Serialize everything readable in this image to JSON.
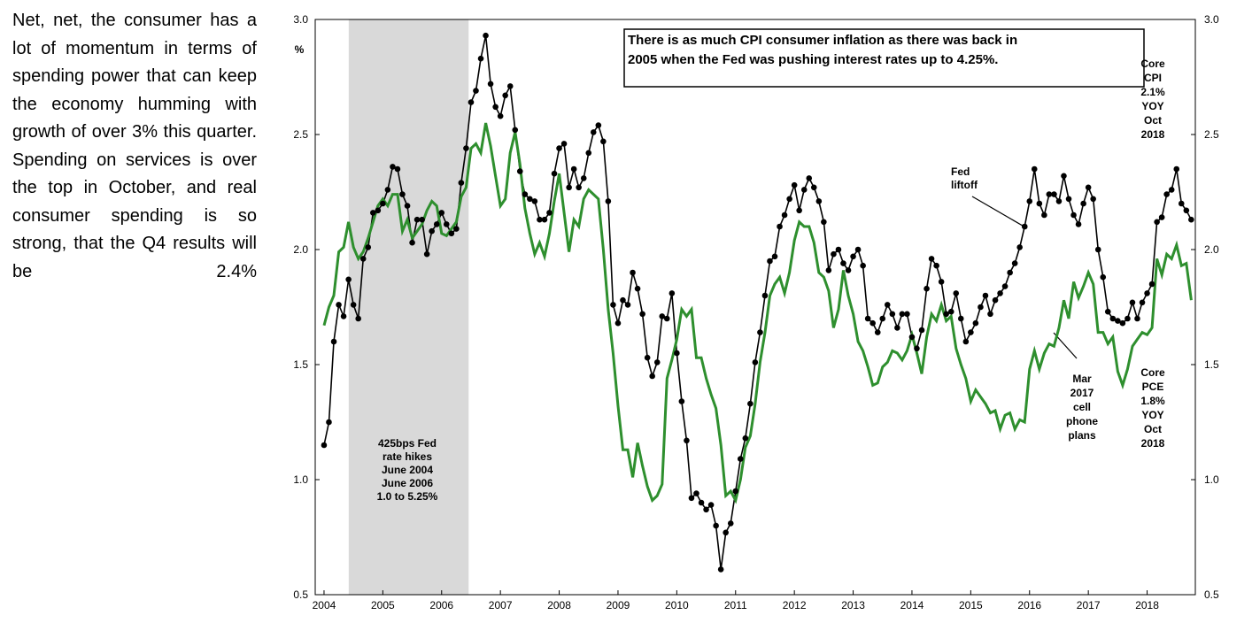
{
  "text": "Net, net, the consumer has a lot of momentum in terms of spending power that can keep the economy humming with growth of over 3% this quarter. Spending on services is over the top in October, and real consumer spending is so strong, that the Q4 results will be 2.4%",
  "chart_data": {
    "type": "line",
    "ylabel": "%",
    "annotations": {
      "box": [
        "There is as much CPI consumer inflation as there was back in",
        "2005 when the Fed was pushing interest rates up to 4.25%."
      ],
      "core_cpi": [
        "Core",
        "CPI",
        "2.1%",
        "YOY",
        "Oct",
        "2018"
      ],
      "core_pce": [
        "Core",
        "PCE",
        "1.8%",
        "YOY",
        "Oct",
        "2018"
      ],
      "rate_hikes": [
        "425bps Fed",
        "rate hikes",
        "June 2004",
        "June 2006",
        "1.0 to 5.25%"
      ],
      "liftoff": [
        "Fed",
        "liftoff"
      ],
      "phone": [
        "Mar",
        "2017",
        "cell",
        "phone",
        "plans"
      ]
    },
    "shaded_region": [
      2004.42,
      2006.46
    ],
    "xlim": [
      2003.85,
      2018.82
    ],
    "xticks": [
      2004,
      2005,
      2006,
      2007,
      2008,
      2009,
      2010,
      2011,
      2012,
      2013,
      2014,
      2015,
      2016,
      2017,
      2018
    ],
    "ylim": [
      0.5,
      3.0
    ],
    "yticks": [
      0.5,
      {
        "value": 1,
        "label": "1.0"
      },
      1.5,
      {
        "value": 2,
        "label": "2.0"
      },
      2.5,
      {
        "value": 3,
        "label": "3.0"
      }
    ],
    "y2lim": [
      0.5,
      3.0
    ],
    "y2ticks": [
      0.5,
      {
        "value": 1,
        "label": "1.0"
      },
      1.5,
      {
        "value": 2,
        "label": "2.0"
      },
      2.5,
      {
        "value": 3,
        "label": "3.0"
      }
    ],
    "x": [
      2004,
      2004.083,
      2004.167,
      2004.25,
      2004.333,
      2004.417,
      2004.5,
      2004.583,
      2004.667,
      2004.75,
      2004.833,
      2004.917,
      2005,
      2005.083,
      2005.167,
      2005.25,
      2005.333,
      2005.417,
      2005.5,
      2005.583,
      2005.667,
      2005.75,
      2005.833,
      2005.917,
      2006,
      2006.083,
      2006.167,
      2006.25,
      2006.333,
      2006.417,
      2006.5,
      2006.583,
      2006.667,
      2006.75,
      2006.833,
      2006.917,
      2007,
      2007.083,
      2007.167,
      2007.25,
      2007.333,
      2007.417,
      2007.5,
      2007.583,
      2007.667,
      2007.75,
      2007.833,
      2007.917,
      2008,
      2008.083,
      2008.167,
      2008.25,
      2008.333,
      2008.417,
      2008.5,
      2008.583,
      2008.667,
      2008.75,
      2008.833,
      2008.917,
      2009,
      2009.083,
      2009.167,
      2009.25,
      2009.333,
      2009.417,
      2009.5,
      2009.583,
      2009.667,
      2009.75,
      2009.833,
      2009.917,
      2010,
      2010.083,
      2010.167,
      2010.25,
      2010.333,
      2010.417,
      2010.5,
      2010.583,
      2010.667,
      2010.75,
      2010.833,
      2010.917,
      2011,
      2011.083,
      2011.167,
      2011.25,
      2011.333,
      2011.417,
      2011.5,
      2011.583,
      2011.667,
      2011.75,
      2011.833,
      2011.917,
      2012,
      2012.083,
      2012.167,
      2012.25,
      2012.333,
      2012.417,
      2012.5,
      2012.583,
      2012.667,
      2012.75,
      2012.833,
      2012.917,
      2013,
      2013.083,
      2013.167,
      2013.25,
      2013.333,
      2013.417,
      2013.5,
      2013.583,
      2013.667,
      2013.75,
      2013.833,
      2013.917,
      2014,
      2014.083,
      2014.167,
      2014.25,
      2014.333,
      2014.417,
      2014.5,
      2014.583,
      2014.667,
      2014.75,
      2014.833,
      2014.917,
      2015,
      2015.083,
      2015.167,
      2015.25,
      2015.333,
      2015.417,
      2015.5,
      2015.583,
      2015.667,
      2015.75,
      2015.833,
      2015.917,
      2016,
      2016.083,
      2016.167,
      2016.25,
      2016.333,
      2016.417,
      2016.5,
      2016.583,
      2016.667,
      2016.75,
      2016.833,
      2016.917,
      2017,
      2017.083,
      2017.167,
      2017.25,
      2017.333,
      2017.417,
      2017.5,
      2017.583,
      2017.667,
      2017.75,
      2017.833,
      2017.917,
      2018,
      2018.083,
      2018.167,
      2018.25,
      2018.333,
      2018.417,
      2018.5,
      2018.583,
      2018.667,
      2018.75
    ],
    "series": [
      {
        "color": "#000000",
        "markers": true,
        "values": [
          1.15,
          1.25,
          1.6,
          1.76,
          1.71,
          1.87,
          1.76,
          1.7,
          1.96,
          2.01,
          2.16,
          2.17,
          2.2,
          2.26,
          2.36,
          2.35,
          2.24,
          2.19,
          2.03,
          2.13,
          2.13,
          1.98,
          2.08,
          2.11,
          2.16,
          2.11,
          2.07,
          2.09,
          2.29,
          2.44,
          2.64,
          2.69,
          2.83,
          2.93,
          2.72,
          2.62,
          2.58,
          2.67,
          2.71,
          2.52,
          2.34,
          2.24,
          2.22,
          2.21,
          2.13,
          2.13,
          2.16,
          2.33,
          2.44,
          2.46,
          2.27,
          2.35,
          2.27,
          2.31,
          2.42,
          2.51,
          2.54,
          2.47,
          2.21,
          1.76,
          1.68,
          1.78,
          1.76,
          1.9,
          1.83,
          1.72,
          1.53,
          1.45,
          1.51,
          1.71,
          1.7,
          1.81,
          1.55,
          1.34,
          1.17,
          0.92,
          0.94,
          0.9,
          0.87,
          0.89,
          0.8,
          0.61,
          0.77,
          0.81,
          0.95,
          1.09,
          1.18,
          1.33,
          1.51,
          1.64,
          1.8,
          1.95,
          1.97,
          2.1,
          2.15,
          2.22,
          2.28,
          2.17,
          2.26,
          2.31,
          2.27,
          2.21,
          2.12,
          1.91,
          1.98,
          2.0,
          1.94,
          1.91,
          1.97,
          2.0,
          1.93,
          1.7,
          1.68,
          1.64,
          1.7,
          1.76,
          1.72,
          1.66,
          1.72,
          1.72,
          1.62,
          1.57,
          1.65,
          1.83,
          1.96,
          1.93,
          1.86,
          1.72,
          1.73,
          1.81,
          1.7,
          1.6,
          1.64,
          1.68,
          1.75,
          1.8,
          1.72,
          1.78,
          1.81,
          1.84,
          1.9,
          1.94,
          2.01,
          2.1,
          2.21,
          2.35,
          2.2,
          2.15,
          2.24,
          2.24,
          2.21,
          2.32,
          2.22,
          2.15,
          2.11,
          2.2,
          2.27,
          2.22,
          2.0,
          1.88,
          1.73,
          1.7,
          1.69,
          1.68,
          1.7,
          1.77,
          1.7,
          1.77,
          1.81,
          1.85,
          2.12,
          2.14,
          2.24,
          2.26,
          2.35,
          2.2,
          2.17,
          2.13
        ]
      },
      {
        "color": "#2e8f2e",
        "markers": false,
        "values": [
          1.67,
          1.75,
          1.8,
          1.99,
          2.01,
          2.12,
          2.01,
          1.96,
          1.99,
          2.05,
          2.12,
          2.19,
          2.22,
          2.19,
          2.24,
          2.24,
          2.08,
          2.13,
          2.05,
          2.08,
          2.11,
          2.17,
          2.21,
          2.19,
          2.07,
          2.06,
          2.09,
          2.12,
          2.23,
          2.27,
          2.44,
          2.46,
          2.42,
          2.55,
          2.45,
          2.32,
          2.19,
          2.22,
          2.42,
          2.51,
          2.37,
          2.18,
          2.07,
          1.98,
          2.03,
          1.97,
          2.07,
          2.21,
          2.33,
          2.16,
          1.99,
          2.13,
          2.1,
          2.22,
          2.26,
          2.24,
          2.22,
          2.0,
          1.74,
          1.55,
          1.32,
          1.13,
          1.13,
          1.01,
          1.16,
          1.06,
          0.97,
          0.91,
          0.93,
          0.98,
          1.44,
          1.52,
          1.61,
          1.74,
          1.71,
          1.74,
          1.53,
          1.53,
          1.44,
          1.37,
          1.31,
          1.15,
          0.93,
          0.95,
          0.91,
          1.0,
          1.14,
          1.19,
          1.33,
          1.51,
          1.64,
          1.8,
          1.85,
          1.88,
          1.81,
          1.9,
          2.04,
          2.12,
          2.1,
          2.1,
          2.03,
          1.9,
          1.88,
          1.82,
          1.66,
          1.74,
          1.91,
          1.8,
          1.72,
          1.6,
          1.56,
          1.49,
          1.41,
          1.42,
          1.49,
          1.51,
          1.56,
          1.55,
          1.52,
          1.56,
          1.63,
          1.55,
          1.46,
          1.62,
          1.72,
          1.69,
          1.76,
          1.69,
          1.71,
          1.57,
          1.5,
          1.44,
          1.34,
          1.39,
          1.36,
          1.33,
          1.29,
          1.3,
          1.22,
          1.28,
          1.29,
          1.22,
          1.26,
          1.25,
          1.48,
          1.56,
          1.48,
          1.55,
          1.59,
          1.58,
          1.66,
          1.78,
          1.7,
          1.86,
          1.79,
          1.84,
          1.9,
          1.85,
          1.64,
          1.64,
          1.59,
          1.62,
          1.47,
          1.41,
          1.48,
          1.58,
          1.61,
          1.64,
          1.63,
          1.66,
          1.96,
          1.89,
          1.98,
          1.96,
          2.02,
          1.93,
          1.94,
          1.78
        ]
      }
    ]
  }
}
